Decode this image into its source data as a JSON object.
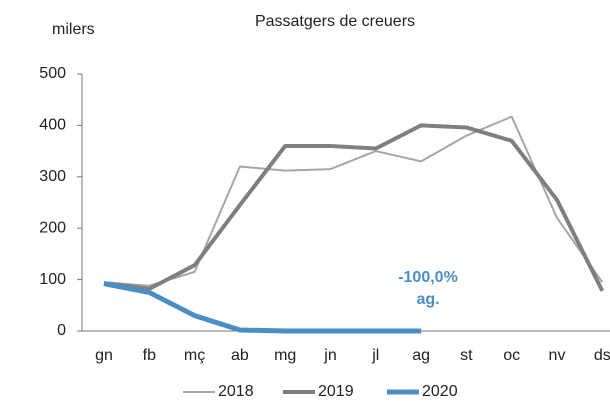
{
  "chart_data": {
    "type": "line",
    "title": "Passatgers de creuers",
    "y_label": "milers",
    "categories": [
      "gn",
      "fb",
      "mç",
      "ab",
      "mg",
      "jn",
      "jl",
      "ag",
      "st",
      "oc",
      "nv",
      "ds"
    ],
    "series": [
      {
        "name": "2018",
        "color": "#a6a6a6",
        "width": 2,
        "values": [
          95,
          88,
          115,
          320,
          312,
          315,
          350,
          330,
          380,
          417,
          220,
          95
        ]
      },
      {
        "name": "2019",
        "color": "#7f7f7f",
        "width": 4,
        "values": [
          93,
          82,
          128,
          245,
          360,
          360,
          355,
          400,
          396,
          370,
          255,
          78
        ]
      },
      {
        "name": "2020",
        "color": "#4a8fc4",
        "width": 5,
        "values": [
          92,
          75,
          30,
          2,
          0,
          0,
          0,
          0,
          null,
          null,
          null,
          null
        ]
      }
    ],
    "annotation": [
      "-100,0%",
      "ag."
    ],
    "ylim": [
      0,
      500
    ],
    "yticks": [
      0,
      100,
      200,
      300,
      400,
      500
    ],
    "grid": false
  }
}
